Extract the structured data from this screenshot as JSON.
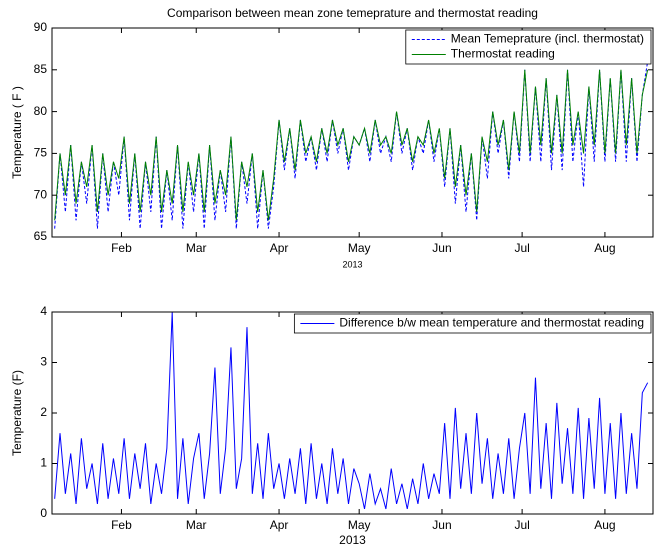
{
  "chart_data": [
    {
      "type": "line",
      "title": "Comparison between mean zone temeprature and thermostat reading",
      "ylabel": "Temperature ( F )",
      "xlabel": "2013",
      "x": [
        6,
        8,
        10,
        12,
        14,
        16,
        18,
        20,
        22,
        24,
        26,
        28,
        30,
        32,
        34,
        36,
        38,
        40,
        42,
        44,
        46,
        48,
        50,
        52,
        54,
        56,
        58,
        60,
        62,
        64,
        66,
        68,
        70,
        72,
        74,
        76,
        78,
        80,
        82,
        84,
        86,
        88,
        90,
        92,
        94,
        96,
        98,
        100,
        102,
        104,
        106,
        108,
        110,
        112,
        114,
        116,
        118,
        120,
        122,
        124,
        126,
        128,
        130,
        132,
        134,
        136,
        138,
        140,
        142,
        144,
        146,
        148,
        150,
        152,
        154,
        156,
        158,
        160,
        162,
        164,
        166,
        168,
        170,
        172,
        174,
        176,
        178,
        180,
        182,
        184,
        186,
        188,
        190,
        192,
        194,
        196,
        198,
        200,
        202,
        204,
        206,
        208,
        210,
        212,
        214,
        216,
        218,
        220,
        222,
        224,
        226,
        228
      ],
      "series": [
        {
          "name": "Mean Temeprature (incl. thermostat)",
          "color": "#0000ff",
          "linestyle": "--",
          "values": [
            66,
            75,
            68,
            76,
            67,
            74,
            69,
            76,
            66,
            75,
            68,
            74,
            70,
            77,
            67,
            75,
            66,
            74,
            68,
            77,
            66,
            73,
            67,
            76,
            66,
            74,
            68,
            75,
            66,
            76,
            67,
            73,
            68,
            77,
            66,
            74,
            69,
            75,
            66,
            73,
            66,
            71,
            79,
            73,
            78,
            72,
            79,
            74,
            77,
            73,
            78,
            74,
            79,
            75,
            78,
            73,
            77,
            76,
            78,
            74,
            79,
            75,
            77,
            74,
            80,
            75,
            78,
            73,
            77,
            75,
            79,
            74,
            78,
            71,
            78,
            69,
            76,
            68,
            75,
            67,
            77,
            72,
            80,
            75,
            79,
            72,
            80,
            74,
            85,
            74,
            83,
            74,
            84,
            73,
            82,
            73,
            85,
            74,
            80,
            71,
            83,
            74,
            85,
            74,
            84,
            74,
            85,
            74,
            84,
            74,
            82,
            86
          ]
        },
        {
          "name": "Thermostat reading",
          "color": "#008000",
          "linestyle": "-",
          "values": [
            67,
            75,
            70,
            76,
            69,
            74,
            71,
            76,
            68,
            75,
            70,
            74,
            72,
            77,
            69,
            75,
            68,
            74,
            70,
            77,
            68,
            73,
            69,
            76,
            68,
            74,
            70,
            75,
            68,
            76,
            69,
            73,
            70,
            77,
            67,
            74,
            71,
            75,
            68,
            73,
            67,
            72,
            79,
            74,
            78,
            73,
            79,
            75,
            77,
            74,
            78,
            75,
            79,
            76,
            78,
            74,
            77,
            76,
            78,
            75,
            79,
            76,
            77,
            75,
            80,
            76,
            78,
            74,
            77,
            76,
            79,
            75,
            78,
            72,
            78,
            71,
            76,
            70,
            75,
            68,
            77,
            74,
            80,
            76,
            79,
            73,
            80,
            75,
            85,
            75,
            83,
            76,
            84,
            75,
            82,
            75,
            85,
            76,
            80,
            75,
            83,
            76,
            85,
            75,
            84,
            75,
            85,
            76,
            84,
            75,
            82,
            85
          ]
        }
      ],
      "xlim": [
        5,
        230
      ],
      "xticks": [
        {
          "value": 31,
          "label": "Feb"
        },
        {
          "value": 59,
          "label": "Mar"
        },
        {
          "value": 90,
          "label": "Apr"
        },
        {
          "value": 120,
          "label": "May"
        },
        {
          "value": 151,
          "label": "Jun"
        },
        {
          "value": 181,
          "label": "Jul"
        },
        {
          "value": 212,
          "label": "Aug"
        }
      ],
      "ylim": [
        65,
        90
      ],
      "yticks": [
        65,
        70,
        75,
        80,
        85,
        90
      ],
      "legend": "upper right"
    },
    {
      "type": "line",
      "ylabel": "Temperature (F)",
      "xlabel": "2013",
      "x": [
        6,
        8,
        10,
        12,
        14,
        16,
        18,
        20,
        22,
        24,
        26,
        28,
        30,
        32,
        34,
        36,
        38,
        40,
        42,
        44,
        46,
        48,
        50,
        52,
        54,
        56,
        58,
        60,
        62,
        64,
        66,
        68,
        70,
        72,
        74,
        76,
        78,
        80,
        82,
        84,
        86,
        88,
        90,
        92,
        94,
        96,
        98,
        100,
        102,
        104,
        106,
        108,
        110,
        112,
        114,
        116,
        118,
        120,
        122,
        124,
        126,
        128,
        130,
        132,
        134,
        136,
        138,
        140,
        142,
        144,
        146,
        148,
        150,
        152,
        154,
        156,
        158,
        160,
        162,
        164,
        166,
        168,
        170,
        172,
        174,
        176,
        178,
        180,
        182,
        184,
        186,
        188,
        190,
        192,
        194,
        196,
        198,
        200,
        202,
        204,
        206,
        208,
        210,
        212,
        214,
        216,
        218,
        220,
        222,
        224,
        226,
        228
      ],
      "series": [
        {
          "name": "Difference b/w mean temperature and thermostat reading",
          "color": "#0000ff",
          "linestyle": "-",
          "values": [
            0.3,
            1.6,
            0.4,
            1.2,
            0.2,
            1.5,
            0.5,
            1.0,
            0.2,
            1.4,
            0.3,
            1.1,
            0.4,
            1.5,
            0.3,
            1.2,
            0.5,
            1.4,
            0.2,
            1.0,
            0.4,
            1.3,
            4,
            0.3,
            1.5,
            0.2,
            1.1,
            1.6,
            0.3,
            1.2,
            2.9,
            0.4,
            1.3,
            3.3,
            0.5,
            1.1,
            3.7,
            0.4,
            1.4,
            0.3,
            1.6,
            0.5,
            1.0,
            0.3,
            1.1,
            0.4,
            1.3,
            0.2,
            1.4,
            0.3,
            1.0,
            0.2,
            1.3,
            0.4,
            1.1,
            0.2,
            0.9,
            0.6,
            0.1,
            0.8,
            0.2,
            0.5,
            0.1,
            0.9,
            0.2,
            0.6,
            0.1,
            0.7,
            0.2,
            1.0,
            0.3,
            0.8,
            0.4,
            1.8,
            0.3,
            2.1,
            0.5,
            1.6,
            0.4,
            2.0,
            0.6,
            1.5,
            0.3,
            1.2,
            0.4,
            1.5,
            0.3,
            1.3,
            2.0,
            0.4,
            2.7,
            0.5,
            1.8,
            0.3,
            2.2,
            0.6,
            1.7,
            0.4,
            2.1,
            0.3,
            1.9,
            0.5,
            2.3,
            0.4,
            1.8,
            0.3,
            2.0,
            0.4,
            1.6,
            0.5,
            2.4,
            2.6
          ]
        }
      ],
      "xlim": [
        5,
        230
      ],
      "xticks": [
        {
          "value": 31,
          "label": "Feb"
        },
        {
          "value": 59,
          "label": "Mar"
        },
        {
          "value": 90,
          "label": "Apr"
        },
        {
          "value": 120,
          "label": "May"
        },
        {
          "value": 151,
          "label": "Jun"
        },
        {
          "value": 181,
          "label": "Jul"
        },
        {
          "value": 212,
          "label": "Aug"
        }
      ],
      "ylim": [
        0,
        4
      ],
      "yticks": [
        0,
        1,
        2,
        3,
        4
      ],
      "legend": "upper right"
    }
  ]
}
